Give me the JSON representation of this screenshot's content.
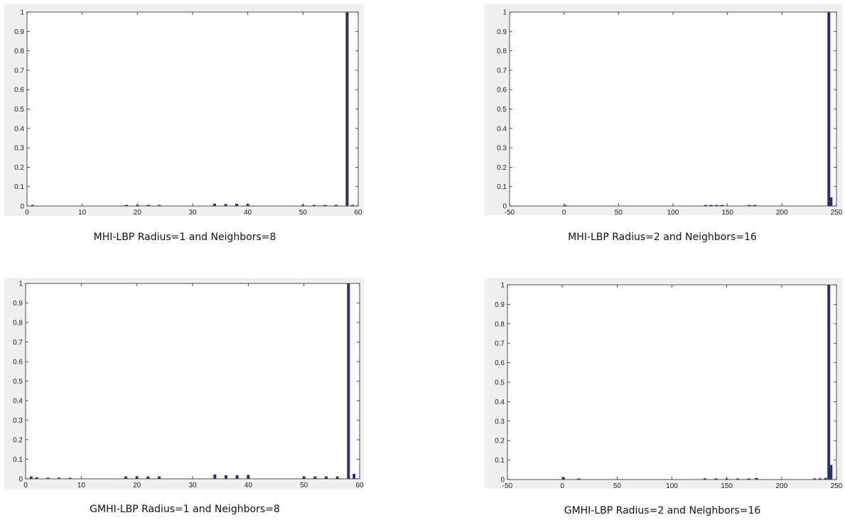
{
  "chart_data": [
    {
      "type": "bar",
      "title": "",
      "caption": "MHI-LBP Radius=1 and Neighbors=8",
      "xlim": [
        0,
        60
      ],
      "ylim": [
        0,
        1
      ],
      "xticks": [
        0,
        10,
        20,
        30,
        40,
        50,
        60
      ],
      "yticks": [
        0,
        0.1,
        0.2,
        0.3,
        0.4,
        0.5,
        0.6,
        0.7,
        0.8,
        0.9,
        1
      ],
      "bar_color": "#2e2e6e",
      "x": [
        1,
        18,
        20,
        22,
        24,
        34,
        36,
        38,
        40,
        50,
        52,
        54,
        56,
        58,
        59
      ],
      "values": [
        0.004,
        0.006,
        0.005,
        0.006,
        0.004,
        0.012,
        0.01,
        0.012,
        0.01,
        0.005,
        0.004,
        0.005,
        0.006,
        1.0,
        0.005
      ]
    },
    {
      "type": "bar",
      "title": "",
      "caption": "MHI-LBP Radius=2 and Neighbors=16",
      "xlim": [
        -50,
        250
      ],
      "ylim": [
        0,
        1
      ],
      "xticks": [
        -50,
        0,
        50,
        100,
        150,
        200,
        250
      ],
      "yticks": [
        0,
        0.1,
        0.2,
        0.3,
        0.4,
        0.5,
        0.6,
        0.7,
        0.8,
        0.9,
        1
      ],
      "bar_color": "#2e2e6e",
      "x": [
        1,
        130,
        135,
        140,
        145,
        170,
        175,
        243,
        245
      ],
      "values": [
        0.003,
        0.003,
        0.002,
        0.004,
        0.003,
        0.003,
        0.003,
        1.0,
        0.045
      ]
    },
    {
      "type": "bar",
      "title": "",
      "caption": "GMHI-LBP Radius=1 and Neighbors=8",
      "xlim": [
        0,
        60
      ],
      "ylim": [
        0,
        1
      ],
      "xticks": [
        0,
        10,
        20,
        30,
        40,
        50,
        60
      ],
      "yticks": [
        0,
        0.1,
        0.2,
        0.3,
        0.4,
        0.5,
        0.6,
        0.7,
        0.8,
        0.9,
        1
      ],
      "bar_color": "#2e2e6e",
      "x": [
        1,
        2,
        4,
        6,
        8,
        18,
        20,
        22,
        24,
        34,
        36,
        38,
        40,
        50,
        52,
        54,
        56,
        58,
        59
      ],
      "values": [
        0.012,
        0.008,
        0.006,
        0.006,
        0.005,
        0.012,
        0.012,
        0.012,
        0.012,
        0.022,
        0.018,
        0.018,
        0.02,
        0.012,
        0.012,
        0.012,
        0.012,
        1.0,
        0.025
      ]
    },
    {
      "type": "bar",
      "title": "",
      "caption": "GMHI-LBP Radius=2 and Neighbors=16",
      "xlim": [
        -50,
        250
      ],
      "ylim": [
        0,
        1
      ],
      "xticks": [
        -50,
        0,
        50,
        100,
        150,
        200,
        250
      ],
      "yticks": [
        0,
        0.1,
        0.2,
        0.3,
        0.4,
        0.5,
        0.6,
        0.7,
        0.8,
        0.9,
        1
      ],
      "bar_color": "#2e2e6e",
      "x": [
        1,
        15,
        130,
        140,
        150,
        160,
        170,
        177,
        230,
        235,
        240,
        243,
        245
      ],
      "values": [
        0.012,
        0.004,
        0.006,
        0.004,
        0.005,
        0.004,
        0.004,
        0.008,
        0.005,
        0.006,
        0.008,
        1.0,
        0.075
      ]
    }
  ]
}
